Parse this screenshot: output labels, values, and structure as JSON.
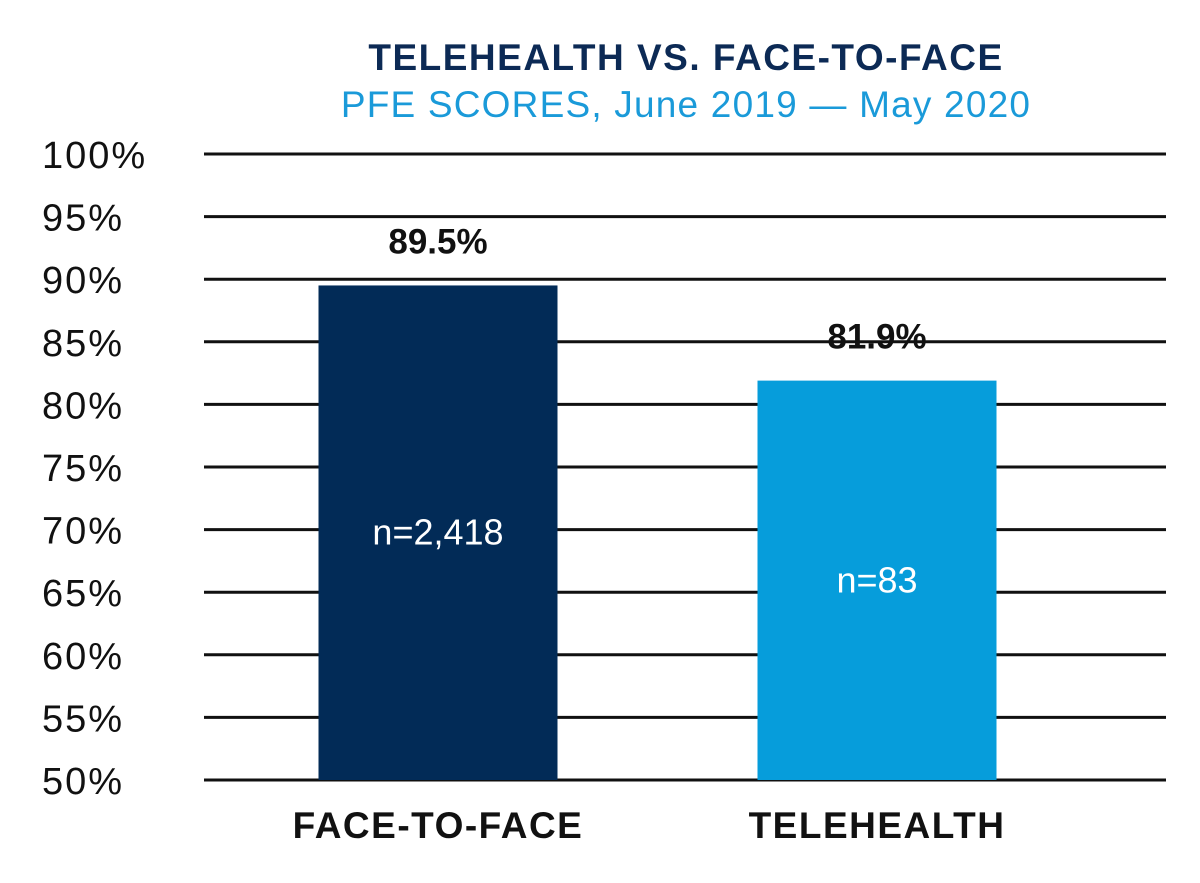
{
  "chart_data": {
    "type": "bar",
    "title": "TELEHEALTH VS. FACE-TO-FACE",
    "subtitle": "PFE SCORES, June 2019 — May 2020",
    "categories": [
      "FACE-TO-FACE",
      "TELEHEALTH"
    ],
    "values": [
      89.5,
      81.9
    ],
    "value_labels": [
      "89.5%",
      "81.9%"
    ],
    "sample_sizes": [
      "n=2,418",
      "n=83"
    ],
    "ylim": [
      50,
      100
    ],
    "yticks": [
      50,
      55,
      60,
      65,
      70,
      75,
      80,
      85,
      90,
      95,
      100
    ],
    "ytick_labels": [
      "50%",
      "55%",
      "60%",
      "65%",
      "70%",
      "75%",
      "80%",
      "85%",
      "90%",
      "95%",
      "100%"
    ],
    "xlabel": "",
    "ylabel": "",
    "grid": true,
    "legend": "none",
    "colors": {
      "title": "#0c2a55",
      "subtitle": "#1a9ad9",
      "bars": [
        "#022b57",
        "#069ddb"
      ],
      "grid": "#111111"
    }
  }
}
